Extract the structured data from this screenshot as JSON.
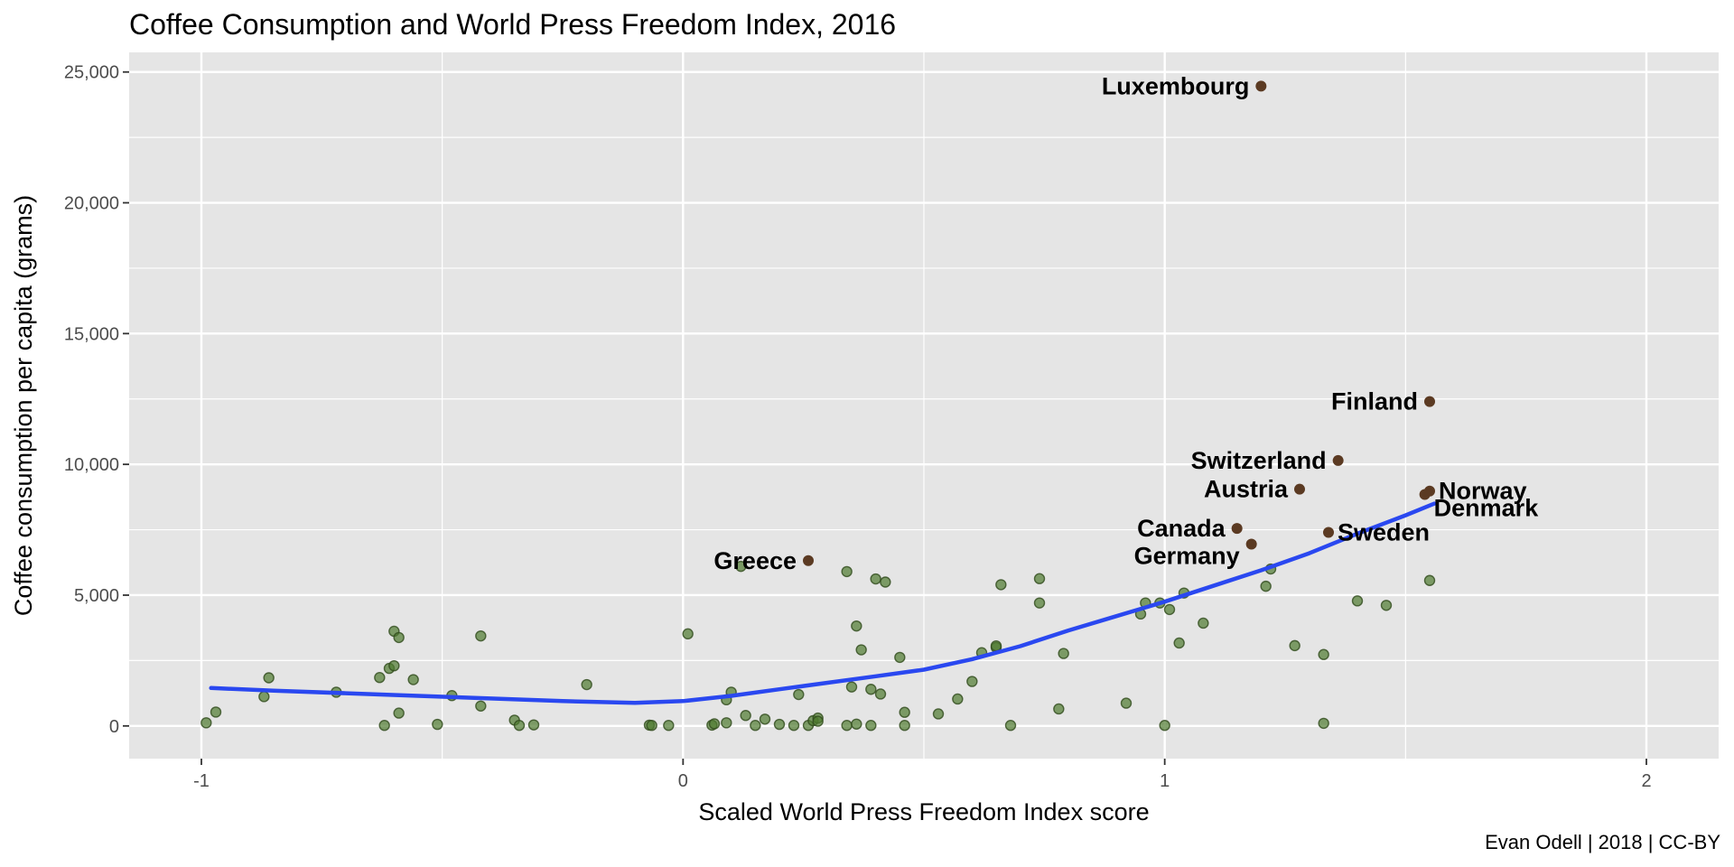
{
  "chart_data": {
    "type": "scatter",
    "title": "Coffee Consumption and World Press Freedom Index, 2016",
    "xlabel": "Scaled World Press Freedom Index score",
    "ylabel": "Coffee consumption per capita (grams)",
    "caption": "Evan Odell | 2018 | CC-BY",
    "xlim": [
      -1.15,
      2.15
    ],
    "ylim": [
      -1250,
      25750
    ],
    "x_ticks": [
      -1,
      0,
      1,
      2
    ],
    "x_tick_labels": [
      "-1",
      "0",
      "1",
      "2"
    ],
    "y_ticks": [
      0,
      5000,
      10000,
      15000,
      20000,
      25000
    ],
    "y_tick_labels": [
      "0",
      "5,000",
      "10,000",
      "15,000",
      "20,000",
      "25,000"
    ],
    "grid": true,
    "background": "#e5e5e5",
    "colors": {
      "points": "#4f7a2f",
      "labelled_points": "#5b3a22",
      "smooth_line": "#2a48f0",
      "grid": "#ffffff"
    },
    "points": [
      {
        "x": -0.99,
        "y": 120
      },
      {
        "x": -0.97,
        "y": 530
      },
      {
        "x": -0.87,
        "y": 1120
      },
      {
        "x": -0.86,
        "y": 1840
      },
      {
        "x": -0.72,
        "y": 1290
      },
      {
        "x": -0.63,
        "y": 1850
      },
      {
        "x": -0.61,
        "y": 2200
      },
      {
        "x": -0.6,
        "y": 3620
      },
      {
        "x": -0.6,
        "y": 2300
      },
      {
        "x": -0.59,
        "y": 3380
      },
      {
        "x": -0.59,
        "y": 490
      },
      {
        "x": -0.62,
        "y": 20
      },
      {
        "x": -0.56,
        "y": 1770
      },
      {
        "x": -0.51,
        "y": 60
      },
      {
        "x": -0.48,
        "y": 1160
      },
      {
        "x": -0.42,
        "y": 3440
      },
      {
        "x": -0.42,
        "y": 760
      },
      {
        "x": -0.35,
        "y": 220
      },
      {
        "x": -0.34,
        "y": 20
      },
      {
        "x": -0.31,
        "y": 40
      },
      {
        "x": -0.2,
        "y": 1580
      },
      {
        "x": -0.07,
        "y": 30
      },
      {
        "x": -0.065,
        "y": 20
      },
      {
        "x": -0.03,
        "y": 20
      },
      {
        "x": 0.01,
        "y": 3520
      },
      {
        "x": 0.06,
        "y": 30
      },
      {
        "x": 0.065,
        "y": 80
      },
      {
        "x": 0.09,
        "y": 120
      },
      {
        "x": 0.09,
        "y": 1000
      },
      {
        "x": 0.1,
        "y": 1290
      },
      {
        "x": 0.12,
        "y": 6100
      },
      {
        "x": 0.13,
        "y": 400
      },
      {
        "x": 0.15,
        "y": 20
      },
      {
        "x": 0.17,
        "y": 260
      },
      {
        "x": 0.2,
        "y": 60
      },
      {
        "x": 0.23,
        "y": 20
      },
      {
        "x": 0.24,
        "y": 1200
      },
      {
        "x": 0.26,
        "y": 20
      },
      {
        "x": 0.27,
        "y": 200
      },
      {
        "x": 0.28,
        "y": 300
      },
      {
        "x": 0.28,
        "y": 180
      },
      {
        "x": 0.34,
        "y": 5900
      },
      {
        "x": 0.34,
        "y": 20
      },
      {
        "x": 0.35,
        "y": 1490
      },
      {
        "x": 0.36,
        "y": 3820
      },
      {
        "x": 0.36,
        "y": 70
      },
      {
        "x": 0.37,
        "y": 2910
      },
      {
        "x": 0.39,
        "y": 1400
      },
      {
        "x": 0.39,
        "y": 20
      },
      {
        "x": 0.4,
        "y": 5620
      },
      {
        "x": 0.41,
        "y": 1220
      },
      {
        "x": 0.42,
        "y": 5500
      },
      {
        "x": 0.45,
        "y": 2620
      },
      {
        "x": 0.46,
        "y": 520
      },
      {
        "x": 0.46,
        "y": 20
      },
      {
        "x": 0.53,
        "y": 460
      },
      {
        "x": 0.57,
        "y": 1030
      },
      {
        "x": 0.6,
        "y": 1700
      },
      {
        "x": 0.62,
        "y": 2800
      },
      {
        "x": 0.65,
        "y": 3000
      },
      {
        "x": 0.65,
        "y": 3060
      },
      {
        "x": 0.66,
        "y": 5400
      },
      {
        "x": 0.68,
        "y": 20
      },
      {
        "x": 0.74,
        "y": 4700
      },
      {
        "x": 0.74,
        "y": 5630
      },
      {
        "x": 0.78,
        "y": 650
      },
      {
        "x": 0.79,
        "y": 2770
      },
      {
        "x": 0.92,
        "y": 870
      },
      {
        "x": 0.95,
        "y": 4280
      },
      {
        "x": 0.96,
        "y": 4700
      },
      {
        "x": 0.99,
        "y": 4700
      },
      {
        "x": 1.0,
        "y": 20
      },
      {
        "x": 1.01,
        "y": 4450
      },
      {
        "x": 1.03,
        "y": 3170
      },
      {
        "x": 1.04,
        "y": 5080
      },
      {
        "x": 1.08,
        "y": 3930
      },
      {
        "x": 1.22,
        "y": 6000
      },
      {
        "x": 1.21,
        "y": 5340
      },
      {
        "x": 1.27,
        "y": 3070
      },
      {
        "x": 1.33,
        "y": 100
      },
      {
        "x": 1.33,
        "y": 2730
      },
      {
        "x": 1.4,
        "y": 4780
      },
      {
        "x": 1.46,
        "y": 4610
      },
      {
        "x": 1.55,
        "y": 5560
      }
    ],
    "labelled_points": [
      {
        "label": "Luxembourg",
        "x": 1.2,
        "y": 24460
      },
      {
        "label": "Finland",
        "x": 1.55,
        "y": 12400
      },
      {
        "label": "Switzerland",
        "x": 1.36,
        "y": 10150
      },
      {
        "label": "Austria",
        "x": 1.28,
        "y": 9050
      },
      {
        "label": "Norway",
        "x": 1.55,
        "y": 8980
      },
      {
        "label": "Denmark",
        "x": 1.54,
        "y": 8850
      },
      {
        "label": "Canada",
        "x": 1.15,
        "y": 7550
      },
      {
        "label": "Germany",
        "x": 1.18,
        "y": 6950
      },
      {
        "label": "Sweden",
        "x": 1.34,
        "y": 7400
      },
      {
        "label": "Greece",
        "x": 0.26,
        "y": 6320
      }
    ],
    "smooth_line": {
      "x": [
        -0.98,
        -0.85,
        -0.7,
        -0.55,
        -0.4,
        -0.25,
        -0.1,
        0.0,
        0.1,
        0.2,
        0.3,
        0.4,
        0.5,
        0.6,
        0.7,
        0.8,
        0.9,
        1.0,
        1.1,
        1.2,
        1.3,
        1.4,
        1.5,
        1.56
      ],
      "y": [
        1450,
        1350,
        1250,
        1150,
        1050,
        950,
        880,
        950,
        1150,
        1400,
        1650,
        1900,
        2150,
        2550,
        3050,
        3650,
        4200,
        4750,
        5350,
        5950,
        6600,
        7350,
        8050,
        8500
      ]
    },
    "label_placement": {
      "Luxembourg": "left",
      "Finland": "left",
      "Switzerland": "left",
      "Austria": "left",
      "Norway": "right",
      "Denmark": "right-below",
      "Canada": "left",
      "Germany": "left-below",
      "Sweden": "right",
      "Greece": "left"
    }
  }
}
